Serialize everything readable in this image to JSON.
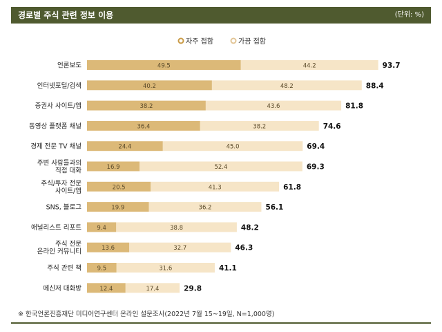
{
  "header": {
    "title": "경로별 주식 관련 정보 이용",
    "unit": "(단위: %)"
  },
  "footnote": "※ 한국언론진흥재단 미디어연구센터 온라인 설문조사(2022년 7월 15~19일, N=1,000명)",
  "colors": {
    "header_bg": "#4f5a2f",
    "frequent": "#dcb978",
    "occasional": "#f6e5c7"
  },
  "chart_data": {
    "type": "bar",
    "orientation": "horizontal",
    "stacked": true,
    "legend_position": "top-center",
    "categories": [
      [
        "언론보도"
      ],
      [
        "인터넷포털/검색"
      ],
      [
        "증권사 사이트/앱"
      ],
      [
        "동영상 플랫폼 채널"
      ],
      [
        "경제 전문 TV 채널"
      ],
      [
        "주변 사람들과의",
        "직접 대화"
      ],
      [
        "주식/투자 전문",
        "사이트/앱"
      ],
      [
        "SNS, 블로그"
      ],
      [
        "애널리스트 리포트"
      ],
      [
        "주식 전문",
        "온라인 커뮤니티"
      ],
      [
        "주식 관련 책"
      ],
      [
        "메신저 대화방"
      ]
    ],
    "series": [
      {
        "name": "자주 접함",
        "values": [
          49.5,
          40.2,
          38.2,
          36.4,
          24.4,
          16.9,
          20.5,
          19.9,
          9.4,
          13.6,
          9.5,
          12.4
        ]
      },
      {
        "name": "가끔 접함",
        "values": [
          44.2,
          48.2,
          43.6,
          38.2,
          45.0,
          52.4,
          41.3,
          36.2,
          38.8,
          32.7,
          31.6,
          17.4
        ]
      }
    ],
    "totals": [
      93.7,
      88.4,
      81.8,
      74.6,
      69.4,
      69.3,
      61.8,
      56.1,
      48.2,
      46.3,
      41.1,
      29.8
    ],
    "xlim": [
      0,
      100
    ],
    "grid": false
  }
}
